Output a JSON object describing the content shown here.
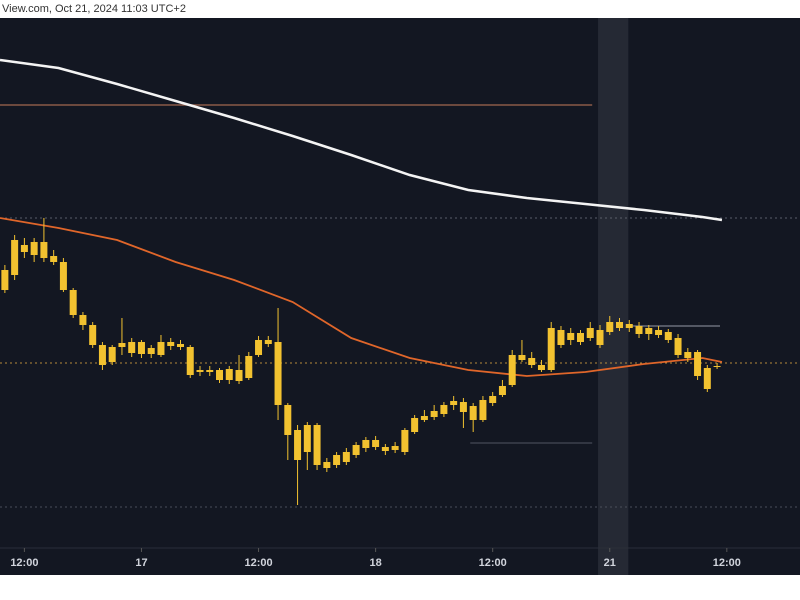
{
  "chart_data": {
    "type": "candlestick",
    "header": "View.com, Oct 21, 2024 11:03 UTC+2",
    "color": "#f2c230",
    "xlim": [
      0,
      82
    ],
    "ylim": [
      0,
      530
    ],
    "xticks": [
      {
        "value": 2.5,
        "label": "12:00"
      },
      {
        "value": 14.5,
        "label": "17"
      },
      {
        "value": 26.5,
        "label": "12:00"
      },
      {
        "value": 38.5,
        "label": "18"
      },
      {
        "value": 50.5,
        "label": "12:00"
      },
      {
        "value": 62.5,
        "label": "21"
      },
      {
        "value": 74.5,
        "label": "12:00"
      }
    ],
    "highlight": [
      61.3,
      64.4
    ],
    "x": [
      0.5,
      1.5,
      2.5,
      3.5,
      4.5,
      5.5,
      6.5,
      7.5,
      8.5,
      9.5,
      10.5,
      11.5,
      12.5,
      13.5,
      14.5,
      15.5,
      16.5,
      17.5,
      18.5,
      19.5,
      20.5,
      21.5,
      22.5,
      23.5,
      24.5,
      25.5,
      26.5,
      27.5,
      28.5,
      29.5,
      30.5,
      31.5,
      32.5,
      33.5,
      34.5,
      35.5,
      36.5,
      37.5,
      38.5,
      39.5,
      40.5,
      41.5,
      42.5,
      43.5,
      44.5,
      45.5,
      46.5,
      47.5,
      48.5,
      49.5,
      50.5,
      51.5,
      52.5,
      53.5,
      54.5,
      55.5,
      56.5,
      57.5,
      58.5,
      59.5,
      60.5,
      61.5,
      62.5,
      63.5,
      64.5,
      65.5,
      66.5,
      67.5,
      68.5,
      69.5,
      70.5,
      71.5,
      72.5,
      73.5
    ],
    "open": [
      258,
      273,
      303,
      293,
      306,
      292,
      286,
      258,
      233,
      223,
      203,
      186,
      201,
      195,
      206,
      194,
      193,
      206,
      204,
      201,
      176,
      178,
      178,
      168,
      167,
      170,
      193,
      208,
      206,
      143,
      118,
      96,
      123,
      86,
      83,
      86,
      93,
      100,
      108,
      101,
      98,
      96,
      116,
      128,
      131,
      134,
      143,
      146,
      142,
      128,
      145,
      153,
      163,
      193,
      190,
      183,
      178,
      218,
      208,
      215,
      210,
      218,
      216,
      226,
      220,
      222,
      214,
      218,
      216,
      210,
      196,
      196,
      159,
      181
    ],
    "high": [
      283,
      313,
      310,
      310,
      330,
      298,
      290,
      260,
      236,
      226,
      206,
      203,
      230,
      210,
      208,
      203,
      213,
      210,
      208,
      203,
      182,
      182,
      180,
      182,
      193,
      196,
      212,
      212,
      240,
      145,
      123,
      126,
      125,
      90,
      96,
      100,
      106,
      111,
      112,
      104,
      106,
      120,
      133,
      138,
      143,
      146,
      152,
      150,
      145,
      152,
      156,
      168,
      198,
      208,
      196,
      188,
      226,
      222,
      220,
      218,
      226,
      223,
      232,
      230,
      228,
      226,
      223,
      222,
      219,
      214,
      200,
      198,
      183,
      185
    ],
    "low": [
      255,
      268,
      290,
      286,
      286,
      283,
      256,
      230,
      218,
      200,
      178,
      183,
      193,
      191,
      190,
      190,
      191,
      198,
      198,
      170,
      172,
      172,
      165,
      164,
      164,
      168,
      191,
      201,
      128,
      88,
      43,
      78,
      78,
      76,
      80,
      83,
      90,
      96,
      98,
      93,
      95,
      93,
      114,
      126,
      128,
      131,
      138,
      120,
      116,
      126,
      142,
      151,
      161,
      186,
      180,
      176,
      176,
      200,
      203,
      203,
      207,
      200,
      213,
      217,
      216,
      210,
      208,
      210,
      205,
      190,
      186,
      168,
      156,
      179
    ],
    "close": [
      278,
      308,
      296,
      306,
      290,
      286,
      258,
      233,
      223,
      203,
      183,
      201,
      205,
      206,
      194,
      200,
      206,
      202,
      201,
      173,
      178,
      176,
      168,
      179,
      178,
      192,
      208,
      204,
      143,
      113,
      88,
      123,
      83,
      80,
      93,
      96,
      103,
      108,
      101,
      97,
      102,
      118,
      130,
      132,
      137,
      143,
      147,
      136,
      128,
      148,
      152,
      162,
      193,
      188,
      183,
      178,
      220,
      203,
      215,
      206,
      220,
      203,
      226,
      220,
      224,
      214,
      220,
      213,
      208,
      193,
      190,
      172,
      180,
      182
    ],
    "lines": [
      {
        "color": "#f4f4f4",
        "x": [
          0,
          6,
          12,
          18,
          24,
          30,
          36,
          42,
          48,
          54,
          60,
          66,
          72,
          74
        ],
        "values": [
          488,
          480,
          464,
          447,
          430,
          412,
          393,
          373,
          358,
          350,
          344,
          338,
          331,
          328
        ]
      },
      {
        "color": "#e0662a",
        "x": [
          0,
          6,
          12,
          18,
          24,
          30,
          36,
          42,
          48,
          54,
          60,
          66,
          72,
          74
        ],
        "values": [
          330,
          320,
          308,
          286,
          268,
          246,
          210,
          190,
          178,
          172,
          176,
          184,
          190,
          186
        ]
      }
    ],
    "levels": [
      {
        "value": 443,
        "from": 0,
        "to": 60.7,
        "color": "#8a5a48",
        "style": "solid"
      },
      {
        "value": 330,
        "from": 0,
        "to": 82,
        "color": "#5a5e6a",
        "style": "dotted"
      },
      {
        "value": 185,
        "from": 0,
        "to": 82,
        "color": "#b58a3a",
        "style": "dotted"
      },
      {
        "value": 41,
        "from": 0,
        "to": 82,
        "color": "#4a4e5a",
        "style": "dotted"
      },
      {
        "value": 105,
        "from": 48.2,
        "to": 60.7,
        "color": "#3c404c",
        "style": "solid"
      },
      {
        "value": 222,
        "from": 64.6,
        "to": 73.8,
        "color": "#6a6e7a",
        "style": "solid"
      }
    ]
  }
}
